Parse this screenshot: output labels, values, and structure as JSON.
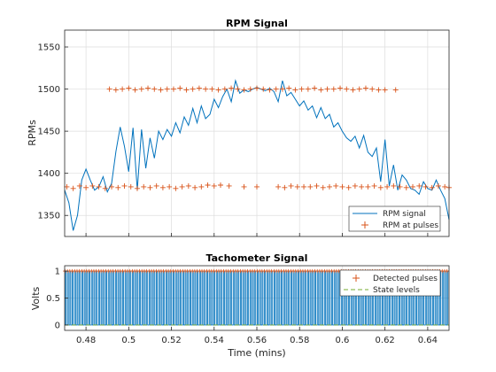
{
  "chart_data": [
    {
      "type": "line",
      "title": "RPM Signal",
      "xlabel": "",
      "ylabel": "RPMs",
      "xlim": [
        0.47,
        0.65
      ],
      "ylim": [
        1325,
        1570
      ],
      "yticks": [
        1350,
        1400,
        1450,
        1500,
        1550
      ],
      "grid": true,
      "legend_position": "bottom-right",
      "colors": {
        "rpm_signal": "#0072BD",
        "rpm_pulses": "#D95319"
      },
      "series": [
        {
          "name": "RPM signal",
          "style": "line",
          "x": [
            0.47,
            0.472,
            0.474,
            0.476,
            0.478,
            0.48,
            0.482,
            0.484,
            0.486,
            0.488,
            0.49,
            0.492,
            0.494,
            0.496,
            0.498,
            0.5,
            0.502,
            0.504,
            0.506,
            0.508,
            0.51,
            0.512,
            0.514,
            0.516,
            0.518,
            0.52,
            0.522,
            0.524,
            0.526,
            0.528,
            0.53,
            0.532,
            0.534,
            0.536,
            0.538,
            0.54,
            0.542,
            0.544,
            0.546,
            0.548,
            0.55,
            0.552,
            0.554,
            0.556,
            0.558,
            0.56,
            0.562,
            0.564,
            0.566,
            0.568,
            0.57,
            0.572,
            0.574,
            0.576,
            0.578,
            0.58,
            0.582,
            0.584,
            0.586,
            0.588,
            0.59,
            0.592,
            0.594,
            0.596,
            0.598,
            0.6,
            0.602,
            0.604,
            0.606,
            0.608,
            0.61,
            0.612,
            0.614,
            0.616,
            0.618,
            0.62,
            0.622,
            0.624,
            0.626,
            0.628,
            0.63,
            0.632,
            0.634,
            0.636,
            0.638,
            0.64,
            0.642,
            0.644,
            0.646,
            0.648,
            0.65
          ],
          "y": [
            1380,
            1365,
            1332,
            1350,
            1392,
            1405,
            1392,
            1380,
            1384,
            1396,
            1378,
            1388,
            1426,
            1455,
            1432,
            1402,
            1454,
            1380,
            1452,
            1406,
            1442,
            1418,
            1450,
            1440,
            1452,
            1444,
            1460,
            1448,
            1467,
            1457,
            1477,
            1460,
            1480,
            1465,
            1470,
            1488,
            1478,
            1491,
            1500,
            1485,
            1510,
            1495,
            1499,
            1497,
            1500,
            1502,
            1500,
            1498,
            1501,
            1497,
            1485,
            1510,
            1492,
            1496,
            1488,
            1480,
            1486,
            1475,
            1480,
            1466,
            1478,
            1465,
            1470,
            1455,
            1460,
            1450,
            1442,
            1438,
            1444,
            1430,
            1445,
            1425,
            1420,
            1430,
            1390,
            1440,
            1385,
            1410,
            1380,
            1398,
            1392,
            1382,
            1380,
            1375,
            1390,
            1382,
            1380,
            1392,
            1380,
            1370,
            1345
          ]
        },
        {
          "name": "RPM at pulses",
          "style": "plus-markers",
          "x": [
            0.471,
            0.474,
            0.477,
            0.48,
            0.483,
            0.486,
            0.489,
            0.492,
            0.495,
            0.498,
            0.501,
            0.504,
            0.507,
            0.51,
            0.513,
            0.516,
            0.519,
            0.522,
            0.525,
            0.528,
            0.531,
            0.534,
            0.537,
            0.54,
            0.543,
            0.547,
            0.554,
            0.56,
            0.57,
            0.573,
            0.576,
            0.579,
            0.582,
            0.585,
            0.588,
            0.591,
            0.594,
            0.597,
            0.6,
            0.603,
            0.606,
            0.609,
            0.612,
            0.615,
            0.618,
            0.621,
            0.624,
            0.627,
            0.63,
            0.633,
            0.636,
            0.639,
            0.642,
            0.645,
            0.648,
            0.65,
            0.491,
            0.494,
            0.497,
            0.5,
            0.503,
            0.506,
            0.509,
            0.512,
            0.515,
            0.518,
            0.521,
            0.524,
            0.527,
            0.53,
            0.533,
            0.536,
            0.539,
            0.542,
            0.545,
            0.548,
            0.551,
            0.554,
            0.557,
            0.56,
            0.563,
            0.566,
            0.569,
            0.572,
            0.575,
            0.578,
            0.581,
            0.584,
            0.587,
            0.59,
            0.593,
            0.596,
            0.599,
            0.602,
            0.605,
            0.608,
            0.611,
            0.614,
            0.617,
            0.62,
            0.625
          ],
          "y": [
            1384,
            1382,
            1385,
            1383,
            1385,
            1384,
            1382,
            1384,
            1383,
            1385,
            1384,
            1382,
            1384,
            1383,
            1385,
            1383,
            1384,
            1382,
            1384,
            1385,
            1383,
            1384,
            1386,
            1385,
            1386,
            1385,
            1384,
            1384,
            1384,
            1383,
            1385,
            1384,
            1384,
            1384,
            1385,
            1383,
            1384,
            1385,
            1384,
            1383,
            1385,
            1384,
            1384,
            1385,
            1383,
            1384,
            1385,
            1384,
            1383,
            1384,
            1385,
            1384,
            1383,
            1385,
            1384,
            1383,
            1500,
            1499,
            1500,
            1501,
            1499,
            1500,
            1501,
            1500,
            1499,
            1500,
            1500,
            1501,
            1499,
            1500,
            1501,
            1500,
            1500,
            1499,
            1500,
            1501,
            1500,
            1499,
            1500,
            1501,
            1500,
            1499,
            1500,
            1500,
            1501,
            1499,
            1500,
            1500,
            1501,
            1499,
            1500,
            1500,
            1501,
            1500,
            1499,
            1500,
            1501,
            1500,
            1499,
            1499,
            1499
          ]
        }
      ]
    },
    {
      "type": "line",
      "title": "Tachometer Signal",
      "xlabel": "Time (mins)",
      "ylabel": "Volts",
      "xlim": [
        0.47,
        0.65
      ],
      "ylim": [
        -0.1,
        1.1
      ],
      "xticks": [
        0.48,
        0.5,
        0.52,
        0.54,
        0.56,
        0.58,
        0.6,
        0.62,
        0.64
      ],
      "xtick_labels": [
        "0.48",
        "0.5",
        "0.52",
        "0.54",
        "0.56",
        "0.58",
        "0.6",
        "0.62",
        "0.64"
      ],
      "yticks": [
        0,
        0.5,
        1
      ],
      "ytick_labels": [
        "0",
        "0.5",
        "1"
      ],
      "grid": true,
      "legend_position": "top-right",
      "colors": {
        "signal": "#0072BD",
        "pulses": "#D95319",
        "levels": "#77AC30"
      },
      "pulse_count": 160,
      "pulse_low": 0,
      "pulse_high": 1,
      "series": [
        {
          "name": "Detected pulses",
          "style": "plus-markers",
          "level": 1
        },
        {
          "name": "State levels",
          "style": "dashed",
          "levels": [
            0,
            1
          ]
        }
      ]
    }
  ]
}
